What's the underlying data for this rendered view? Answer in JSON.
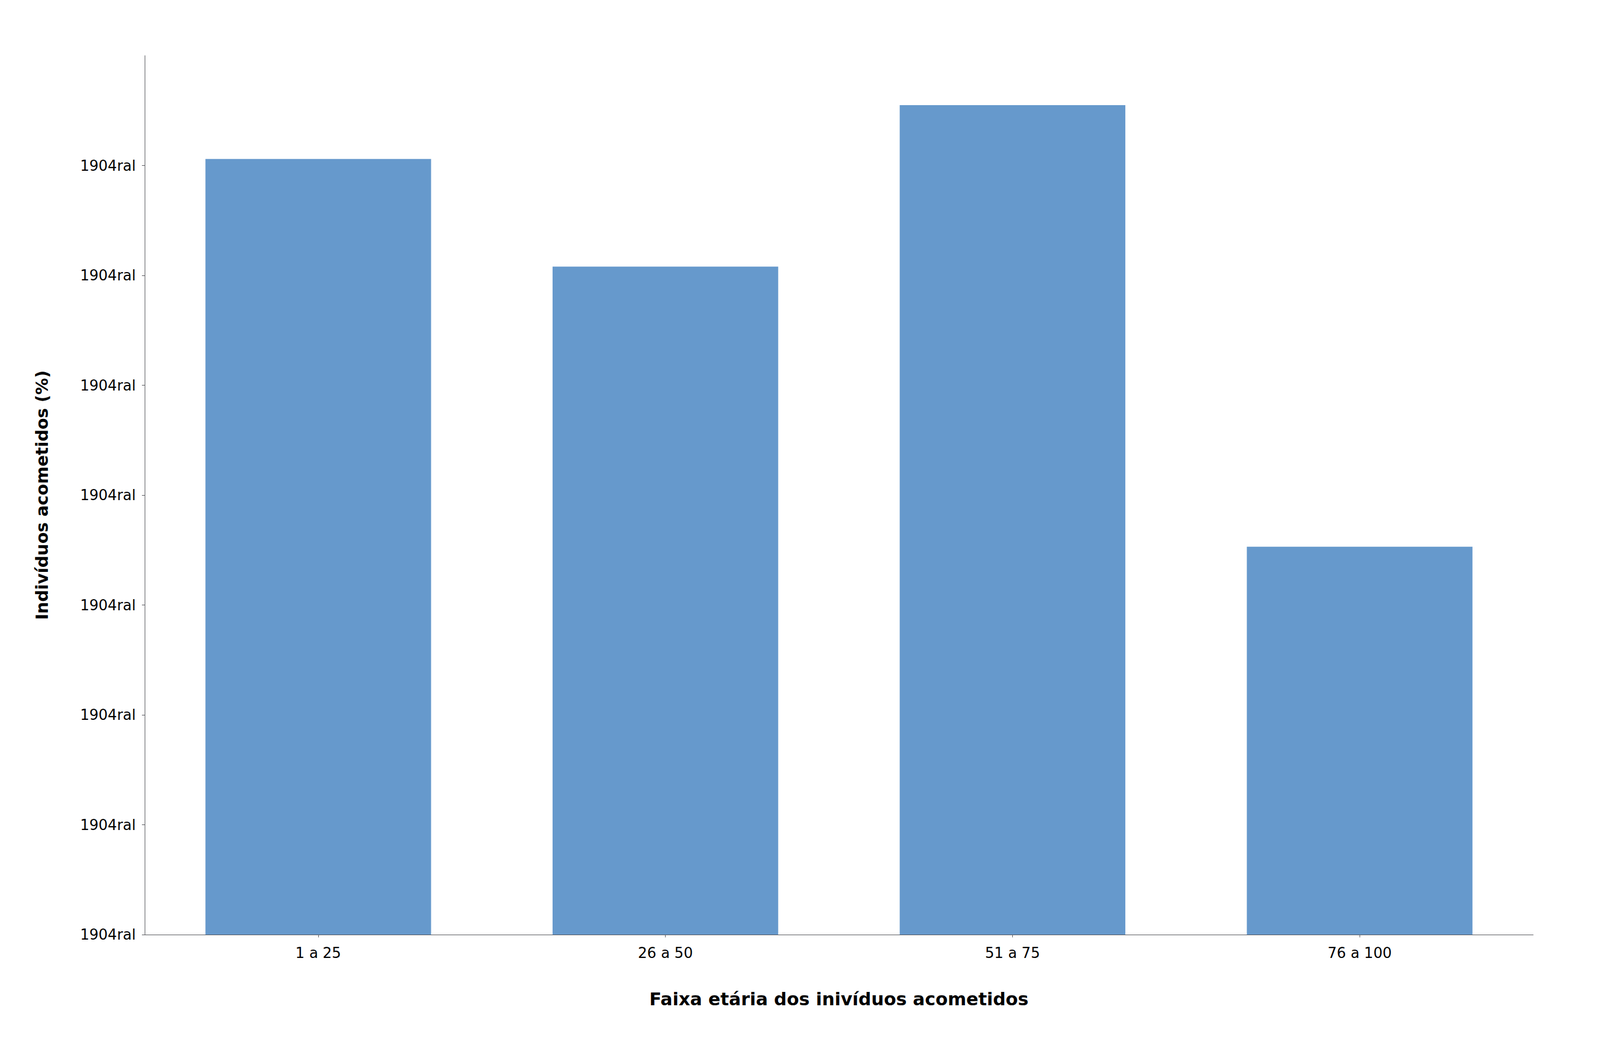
{
  "chart_data": {
    "type": "bar",
    "categories": [
      "1 a 25",
      "26 a 50",
      "51 a 75",
      "76 a 100"
    ],
    "values": [
      70.6,
      60.8,
      75.5,
      35.3
    ],
    "color": "#6699CC",
    "xlabel": "Faixa etária dos inivíduos acometidos",
    "ylabel": "Indivíduos acometidos (%)",
    "ylim": [
      0,
      80
    ],
    "yticks": [
      {
        "value": 0,
        "label": "1904ral"
      },
      {
        "value": 10,
        "label": "1904ral"
      },
      {
        "value": 20,
        "label": "1904ral"
      },
      {
        "value": 30,
        "label": "1904ral"
      },
      {
        "value": 40,
        "label": "1904ral"
      },
      {
        "value": 50,
        "label": "1904ral"
      },
      {
        "value": 60,
        "label": "1904ral"
      },
      {
        "value": 70,
        "label": "1904ral"
      }
    ],
    "grid": false
  }
}
